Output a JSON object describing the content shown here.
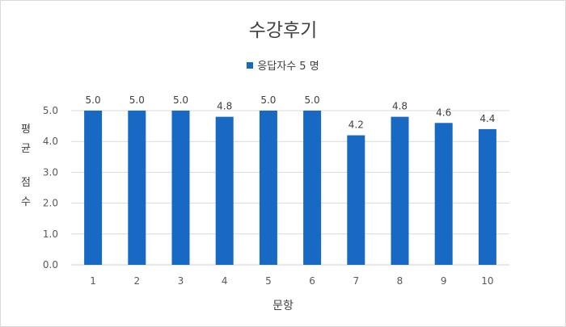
{
  "chart_data": {
    "type": "bar",
    "title": "수강후기",
    "xlabel": "문항",
    "ylabel": "평균 점수",
    "categories": [
      "1",
      "2",
      "3",
      "4",
      "5",
      "6",
      "7",
      "8",
      "9",
      "10"
    ],
    "series": [
      {
        "name": "응답자수 5 명",
        "values": [
          5.0,
          5.0,
          5.0,
          4.8,
          5.0,
          5.0,
          4.2,
          4.8,
          4.6,
          4.4
        ]
      }
    ],
    "data_labels": [
      "5.0",
      "5.0",
      "5.0",
      "4.8",
      "5.0",
      "5.0",
      "4.2",
      "4.8",
      "4.6",
      "4.4"
    ],
    "ylim": [
      0,
      5
    ],
    "yticks": [
      "0.0",
      "1.0",
      "2.0",
      "3.0",
      "4.0",
      "5.0"
    ],
    "grid": true,
    "legend_position": "top",
    "bar_color": "#1769c4",
    "grid_color": "#d9d9d9"
  }
}
